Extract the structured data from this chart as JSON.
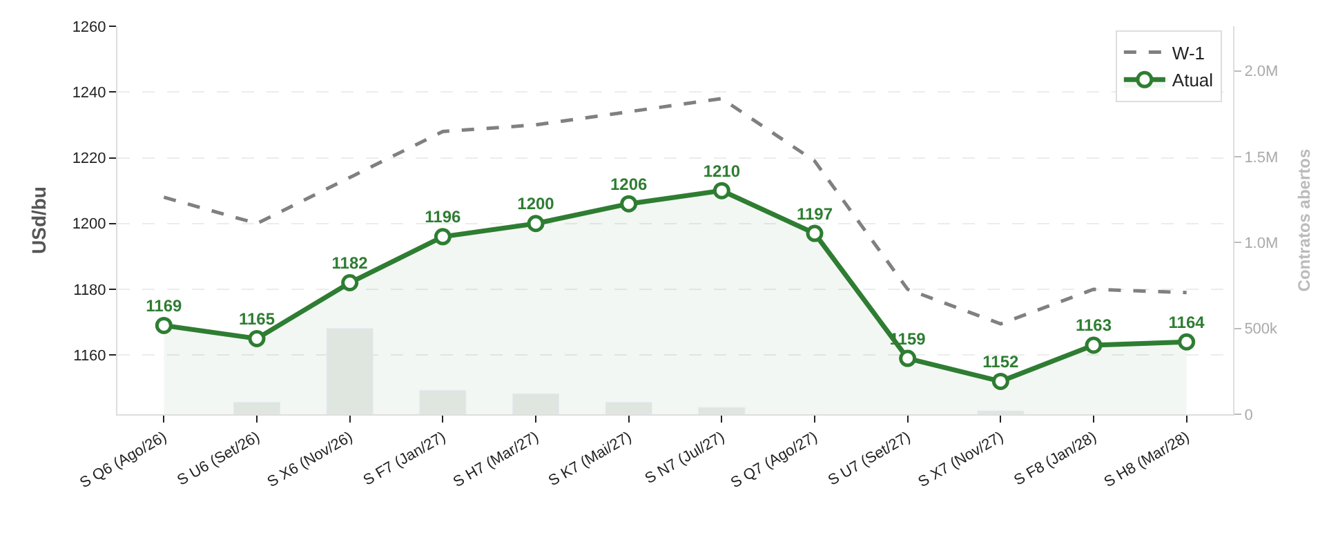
{
  "chart_data": {
    "type": "line",
    "ylabel": "USd/bu",
    "y2label": "Contratos abertos",
    "categories": [
      "S Q6 (Ago/26)",
      "S U6 (Set/26)",
      "S X6 (Nov/26)",
      "S F7 (Jan/27)",
      "S H7 (Mar/27)",
      "S K7 (Mai/27)",
      "S N7 (Jul/27)",
      "S Q7 (Ago/27)",
      "S U7 (Set/27)",
      "S X7 (Nov/27)",
      "S F8 (Jan/28)",
      "S H8 (Mar/28)"
    ],
    "series": [
      {
        "type": "bar",
        "axis": "y2",
        "color": "#dfe5df",
        "values": [
          null,
          70000,
          500000,
          140000,
          120000,
          70000,
          40000,
          null,
          null,
          20000,
          null,
          null
        ]
      },
      {
        "name": "W-1",
        "color": "#808080",
        "line_style": "dashed",
        "marker": "none",
        "values": [
          1208,
          1200,
          1214,
          1228,
          1230,
          1234,
          1238,
          1219,
          1180,
          1169.5,
          1180,
          1179
        ]
      },
      {
        "name": "Atual",
        "type": "area",
        "color": "#2e7d32",
        "marker": "circle",
        "values": [
          1169,
          1165,
          1182,
          1196,
          1200,
          1206,
          1210,
          1197,
          1159,
          1152,
          1163,
          1164
        ],
        "value_labels": [
          "1169",
          "1165",
          "1182",
          "1196",
          "1200",
          "1206",
          "1210",
          "1197",
          "1159",
          "1152",
          "1163",
          "1164"
        ]
      }
    ],
    "ylim": [
      1142,
      1260
    ],
    "yticks": [
      1160,
      1180,
      1200,
      1220,
      1240,
      1260
    ],
    "y2lim": [
      0,
      2260000
    ],
    "y2ticks": [
      0,
      {
        "value": 500000,
        "label": "500k"
      },
      {
        "value": 1000000,
        "label": "1.0M"
      },
      {
        "value": 1500000,
        "label": "1.5M"
      },
      {
        "value": 2000000,
        "label": "2.0M"
      }
    ],
    "grid": "y",
    "legend": "top right"
  }
}
